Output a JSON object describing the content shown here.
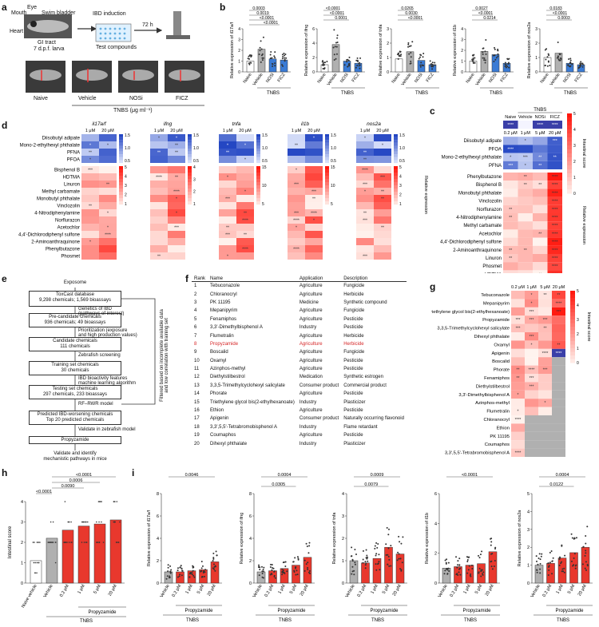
{
  "panel_labels": {
    "a": "a",
    "b": "b",
    "c": "c",
    "d": "d",
    "e": "e",
    "f": "f",
    "g": "g",
    "h": "h",
    "i": "i"
  },
  "panel_a": {
    "labels": [
      "Mouth",
      "Eye",
      "Swim bladder",
      "Heart",
      "GI tract",
      "7 d.p.f. larva",
      "IBD induction",
      "72 h",
      "Test compounds"
    ],
    "conditions": [
      "Naive",
      "Vehicle",
      "NOSi",
      "FICZ"
    ],
    "xlabel": "TNBS (μg ml⁻¹)"
  },
  "panel_b": {
    "genes": [
      {
        "ylabel": "Relative expression of il17a/f",
        "ticks": [
          "0",
          "1",
          "2",
          "3",
          "4"
        ],
        "p": [
          "0.0003",
          "0.0019",
          "<0.0001",
          "<0.0001"
        ],
        "means": [
          1,
          2.1,
          1.2,
          1.1
        ],
        "ymax": 4
      },
      {
        "ylabel": "Relative expression of ifng",
        "ticks": [
          "0",
          "2",
          "4",
          "6"
        ],
        "p": [
          "<0.0001",
          "<0.0001",
          "0.0001"
        ],
        "means": [
          1,
          3.8,
          1.5,
          1.2
        ],
        "ymax": 6
      },
      {
        "ylabel": "Relative expression of tnfa",
        "ticks": [
          "0",
          "1",
          "2",
          "3"
        ],
        "p": [
          "0.0265",
          "0.0030",
          "<0.0001"
        ],
        "means": [
          0.9,
          1.4,
          0.8,
          0.5
        ],
        "ymax": 3
      },
      {
        "ylabel": "Relative expression of il1b",
        "ticks": [
          "0",
          "1",
          "2",
          "3",
          "4"
        ],
        "p": [
          "0.0027",
          "<0.0001",
          "0.0214"
        ],
        "means": [
          1,
          1.9,
          1.6,
          0.8
        ],
        "ymax": 4
      },
      {
        "ylabel": "Relative expression of nos2a",
        "ticks": [
          "0",
          "1",
          "2",
          "3"
        ],
        "p": [
          "0.0183",
          "<0.0001",
          "0.0003"
        ],
        "means": [
          1,
          1.3,
          0.6,
          0.5
        ],
        "ymax": 3
      }
    ],
    "conditions": [
      "Naive",
      "Vehicle",
      "NOSi",
      "FICZ"
    ],
    "xlabel": "TNBS"
  },
  "panel_c": {
    "header": "TNBS",
    "cols": [
      "Naive",
      "Vehicle",
      "NOSi",
      "FICZ"
    ],
    "conc": [
      "0.2 μM",
      "1 μM",
      "5 μM",
      "20 μM"
    ],
    "blue_rows": [
      "Diisobutyl adipate",
      "PFOA",
      "Mono-2-ethylhexyl phthalate",
      "PFNA"
    ],
    "red_rows": [
      "Phenylbutazone",
      "Bisphenol B",
      "Monobutyl phthalate",
      "Vinclozolin",
      "Norflurazon",
      "4-Nitrodiphenylamine",
      "Methyl carbamate",
      "Acetochlor",
      "4,4'-Dichlorodiphenyl sulfone",
      "2-Aminoanthraquinone",
      "Linuron",
      "Phosmet",
      "HDTMA"
    ],
    "colorbar_label": "Intestinal score",
    "colorbar_ticks": [
      "5",
      "4",
      "3",
      "2",
      "1",
      "0"
    ],
    "side_label": "Relative expression"
  },
  "panel_d": {
    "genes": [
      "il17a/f",
      "ifng",
      "tnfa",
      "il1b",
      "nos2a"
    ],
    "conc": [
      "1 μM",
      "20 μM"
    ],
    "blue_rows": [
      "Diisobutyl adipate",
      "Mono-2-ethylhexyl phthalate",
      "PFNA",
      "PFOA"
    ],
    "red_rows": [
      "Bisphenol B",
      "HDTMA",
      "Linuron",
      "Methyl carbamate",
      "Monobutyl phthalate",
      "Vinclozolin",
      "4-Nitrodiphenylamine",
      "Norflurazon",
      "Acetochlor",
      "4,4'-Dichlorodiphenyl sulfone",
      "2-Aminoanthraquinone",
      "Phenylbutazone",
      "Phosmet"
    ],
    "blue_scale": [
      "1.5",
      "1.0",
      "0.5"
    ],
    "red_scales": [
      [
        "5",
        "4",
        "3",
        "2",
        "1"
      ],
      [
        "4",
        "3",
        "2",
        "1"
      ],
      [
        "15",
        "10",
        "5"
      ],
      [
        "15",
        "10",
        "5"
      ],
      [
        "5",
        "4",
        "3",
        "2",
        "1"
      ]
    ],
    "side_label": "Relative expression"
  },
  "panel_e": {
    "boxes": [
      "Exposome",
      "ToxCast database\n9,298 chemicals; 1,569 bioassays",
      "Pre-candidate chemicals\n936 chemicals; 49 bioassays",
      "Candidate chemicals\n111 chemicals",
      "Training set chemicals\n30 chemicals",
      "Testing set chemicals\n297 chemicals, 233 bioassays",
      "Predicted IBD-worsening chemicals\nTop 20 predicted chemicals",
      "Propyzamide",
      "Validate and identify\nmechanistic pathways in mice"
    ],
    "steps": [
      "Genetics of IBD\n(pathways of interest)",
      "Prioritization (exposure\nand high production values)",
      "Zebrafish screening",
      "IBD bioactivity features\nmachine learning algorithm",
      "RF–RWR model",
      "Validate in zebrafish model"
    ],
    "side_text": "Filtered based on incomplete available data\nand low correlation with training set"
  },
  "panel_f": {
    "headers": [
      "Rank",
      "Name",
      "Application",
      "Description"
    ],
    "rows": [
      [
        "1",
        "Tebuconazole",
        "Agriculture",
        "Fungicide"
      ],
      [
        "2",
        "Chloranocryl",
        "Agriculture",
        "Herbicide"
      ],
      [
        "3",
        "PK 11195",
        "Medicine",
        "Synthetic compound"
      ],
      [
        "4",
        "Mepanipyrim",
        "Agriculture",
        "Fungicide"
      ],
      [
        "5",
        "Fenamiphos",
        "Agriculture",
        "Pesticide"
      ],
      [
        "6",
        "3,3'-Dimethylbisphenol A",
        "Industry",
        "Pesticide"
      ],
      [
        "7",
        "Flumetralin",
        "Agriculture",
        "Herbicide"
      ],
      [
        "8",
        "Propyzamide",
        "Agriculture",
        "Herbicide"
      ],
      [
        "9",
        "Boscalid",
        "Agriculture",
        "Fungicide"
      ],
      [
        "10",
        "Oxamyl",
        "Agriculture",
        "Pesticide"
      ],
      [
        "11",
        "Azinphos-methyl",
        "Agriculture",
        "Pesticide"
      ],
      [
        "12",
        "Diethylstilbestrol",
        "Medication",
        "Synthetic estrogen"
      ],
      [
        "13",
        "3,3,5-Trimethylcyclohexyl salicylate",
        "Consumer product",
        "Commercial product"
      ],
      [
        "14",
        "Phorate",
        "Agriculture",
        "Pesticide"
      ],
      [
        "15",
        "Triethylene glycol bis(2-ethylhexanoate)",
        "Industry",
        "Plasticizer"
      ],
      [
        "16",
        "Ethion",
        "Agriculture",
        "Pesticide"
      ],
      [
        "17",
        "Apigenin",
        "Consumer product",
        "Naturally occurring flavonoid"
      ],
      [
        "18",
        "3,3',5,5'-Tetrabromobisphenol A",
        "Industry",
        "Flame retardant"
      ],
      [
        "19",
        "Coumaphos",
        "Agriculture",
        "Pesticide"
      ],
      [
        "20",
        "Dihexyl phthalate",
        "Industry",
        "Plasticizer"
      ]
    ]
  },
  "panel_g": {
    "conc": [
      "0.2 μM",
      "1 μM",
      "5 μM",
      "20 μM"
    ],
    "rows": [
      "Tebuconazole",
      "Mepanipyrim",
      "Triethylene glycol bis(2-ethylhexanoate)",
      "Propyzamide",
      "3,3,5-Trimethylcyclohexyl salicylate",
      "Dihexyl phthalate",
      "Oxamyl",
      "Apigenin",
      "Boscalid",
      "Phorate",
      "Fenamiphos",
      "Diethylstilbestrol",
      "3,3'-Dimethylbisphenol A",
      "Azinphos-methyl",
      "Flumetralin",
      "Chloranocryl",
      "Ethion",
      "PK 11195",
      "Coumaphos",
      "3,3',5,5'-Tetrabromobisphenol A"
    ],
    "colorbar_label": "Intestinal score",
    "colorbar_ticks": [
      "5",
      "4",
      "3",
      "2",
      "1",
      "0"
    ]
  },
  "panel_h": {
    "ylabel": "Intestinal score",
    "ticks": [
      "0",
      "1",
      "2",
      "3",
      "4"
    ],
    "categories": [
      "Naive vehicle",
      "Vehicle",
      "0.2 μM",
      "1 μM",
      "5 μM",
      "20 μM"
    ],
    "means": [
      1.1,
      2.2,
      2.6,
      2.8,
      2.9,
      3.1
    ],
    "p": [
      "<0.0001",
      "0.0090",
      "0.0006",
      "<0.0001"
    ],
    "group1": "Propyzamide",
    "group2": "TNBS"
  },
  "panel_i": {
    "genes": [
      {
        "ylabel": "Relative expression of il17a/f",
        "ticks": [
          "0",
          "2",
          "4",
          "6",
          "8"
        ],
        "ymax": 8,
        "p": [
          "0.0046"
        ],
        "means": [
          1,
          1,
          1.1,
          1.2,
          1.9
        ]
      },
      {
        "ylabel": "Relative expression of ifng",
        "ticks": [
          "0",
          "2",
          "4",
          "6",
          "8"
        ],
        "ymax": 8,
        "p": [
          "0.0004",
          "0.0305"
        ],
        "means": [
          1,
          1.1,
          1.3,
          1.6,
          2.3
        ]
      },
      {
        "ylabel": "Relative expression of tnfa",
        "ticks": [
          "0",
          "1",
          "2",
          "3",
          "4"
        ],
        "ymax": 4,
        "p": [
          "0.0009",
          "0.0079"
        ],
        "means": [
          1,
          0.9,
          1.1,
          1.6,
          1.3
        ]
      },
      {
        "ylabel": "Relative expression of il1b",
        "ticks": [
          "0",
          "2",
          "4",
          "6"
        ],
        "ymax": 6,
        "p": [
          "<0.0001"
        ],
        "means": [
          1,
          1.1,
          1.2,
          1.3,
          2.1
        ]
      },
      {
        "ylabel": "Relative expression of nos2a",
        "ticks": [
          "0",
          "1",
          "2",
          "3",
          "4",
          "5"
        ],
        "ymax": 5,
        "p": [
          "0.0004",
          "0.0122"
        ],
        "means": [
          1,
          1.1,
          1.4,
          1.7,
          2
        ]
      }
    ],
    "categories": [
      "Vehicle",
      "0.2 μM",
      "1 μM",
      "5 μM",
      "20 μM"
    ],
    "group1": "Propyzamide",
    "group2": "TNBS"
  }
}
